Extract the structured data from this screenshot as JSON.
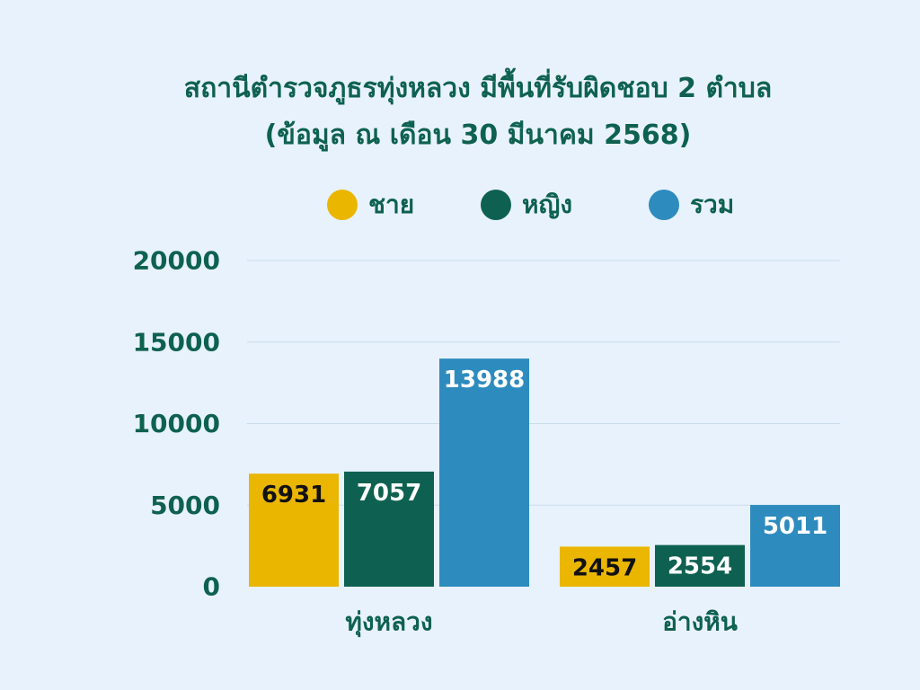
{
  "chart_data": {
    "type": "bar",
    "title": "สถานีตำรวจภูธรทุ่งหลวง มีพื้นที่รับผิดชอบ 2 ตำบล",
    "subtitle": "(ข้อมูล ณ เดือน 30 มีนาคม 2568)",
    "categories": [
      "ทุ่งหลวง",
      "อ่างหิน"
    ],
    "series": [
      {
        "name": "ชาย",
        "values": [
          6931,
          2457
        ],
        "color": "#eab600",
        "label_color": "#111111"
      },
      {
        "name": "หญิง",
        "values": [
          7057,
          2554
        ],
        "color": "#0e6150",
        "label_color": "#ffffff"
      },
      {
        "name": "รวม",
        "values": [
          13988,
          5011
        ],
        "color": "#2e8bbe",
        "label_color": "#ffffff"
      }
    ],
    "ylim": [
      0,
      20000
    ],
    "yticks": [
      0,
      5000,
      10000,
      15000,
      20000
    ],
    "xlabel": "",
    "ylabel": "",
    "grid": true,
    "legend_position": "top"
  }
}
